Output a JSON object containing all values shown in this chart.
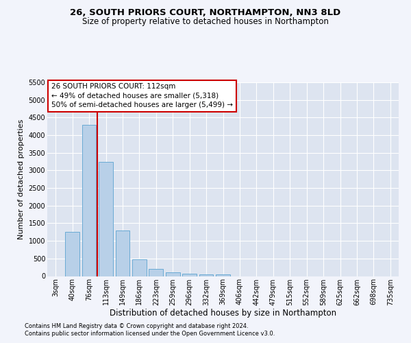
{
  "title1": "26, SOUTH PRIORS COURT, NORTHAMPTON, NN3 8LD",
  "title2": "Size of property relative to detached houses in Northampton",
  "xlabel": "Distribution of detached houses by size in Northampton",
  "ylabel": "Number of detached properties",
  "categories": [
    "3sqm",
    "40sqm",
    "76sqm",
    "113sqm",
    "149sqm",
    "186sqm",
    "223sqm",
    "259sqm",
    "296sqm",
    "332sqm",
    "369sqm",
    "406sqm",
    "442sqm",
    "479sqm",
    "515sqm",
    "552sqm",
    "589sqm",
    "625sqm",
    "662sqm",
    "698sqm",
    "735sqm"
  ],
  "values": [
    0,
    1250,
    4300,
    3250,
    1300,
    480,
    200,
    100,
    70,
    50,
    45,
    0,
    0,
    0,
    0,
    0,
    0,
    0,
    0,
    0,
    0
  ],
  "bar_color": "#b8d0e8",
  "bar_edgecolor": "#6aaad4",
  "bar_linewidth": 0.7,
  "vline_color": "#cc0000",
  "vline_pos": 2.47,
  "annotation_text": "26 SOUTH PRIORS COURT: 112sqm\n← 49% of detached houses are smaller (5,318)\n50% of semi-detached houses are larger (5,499) →",
  "annotation_box_edgecolor": "#cc0000",
  "annotation_box_facecolor": "#ffffff",
  "ylim_max": 5500,
  "yticks": [
    0,
    500,
    1000,
    1500,
    2000,
    2500,
    3000,
    3500,
    4000,
    4500,
    5000,
    5500
  ],
  "footnote1": "Contains HM Land Registry data © Crown copyright and database right 2024.",
  "footnote2": "Contains public sector information licensed under the Open Government Licence v3.0.",
  "bg_color": "#f2f4fb",
  "plot_bg_color": "#dde4f0",
  "grid_color": "#ffffff",
  "title1_fontsize": 9.5,
  "title2_fontsize": 8.5,
  "xlabel_fontsize": 8.5,
  "ylabel_fontsize": 8,
  "tick_fontsize": 7,
  "annot_fontsize": 7.5,
  "footnote_fontsize": 6
}
